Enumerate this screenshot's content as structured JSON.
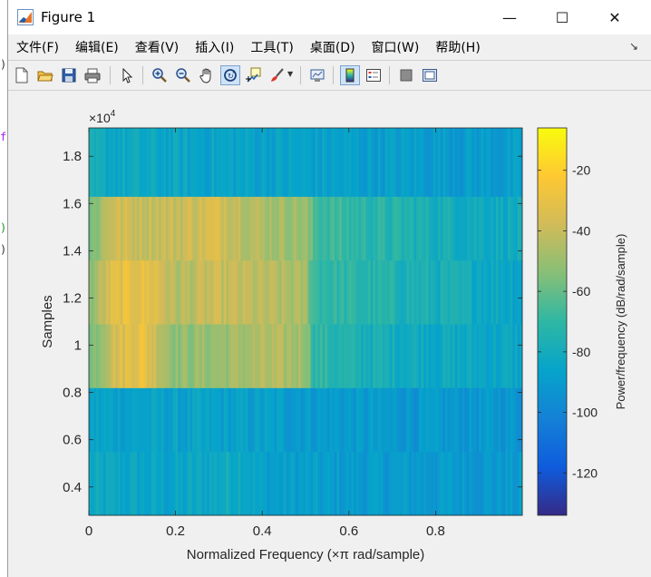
{
  "window": {
    "title": "Figure 1",
    "minimize_glyph": "—",
    "maximize_glyph": "☐",
    "close_glyph": "✕"
  },
  "menu": {
    "items": [
      "文件(F)",
      "编辑(E)",
      "查看(V)",
      "插入(I)",
      "工具(T)",
      "桌面(D)",
      "窗口(W)",
      "帮助(H)"
    ],
    "overflow_glyph": "↘"
  },
  "toolbar": {
    "icons": [
      "new-figure-icon",
      "open-file-icon",
      "save-icon",
      "print-icon",
      "edit-pointer-icon",
      "zoom-in-icon",
      "zoom-out-icon",
      "pan-hand-icon",
      "rotate-3d-icon",
      "data-cursor-icon",
      "brush-icon",
      "link-plot-icon",
      "insert-colorbar-icon",
      "insert-legend-icon",
      "hide-plot-tools-icon",
      "show-plot-tools-icon"
    ]
  },
  "background_code_glyphs": [
    ")",
    "f",
    ")",
    ")"
  ],
  "colors": {
    "parula": [
      "#352a87",
      "#0f5cdd",
      "#1481d6",
      "#06a4ca",
      "#2eb7a4",
      "#87bf77",
      "#d1bb59",
      "#fec832",
      "#f9fb0e"
    ],
    "axes_text": "#262626"
  },
  "chart_data": {
    "type": "heatmap",
    "title": "",
    "xlabel": "Normalized Frequency  (×π rad/sample)",
    "ylabel": "Samples",
    "y_exponent_label": "×10",
    "y_exponent_power": "4",
    "xlim": [
      0,
      1
    ],
    "ylim": [
      2800,
      19200
    ],
    "x_ticks": [
      0,
      0.2,
      0.4,
      0.6,
      0.8
    ],
    "x_tick_labels": [
      "0",
      "0.2",
      "0.4",
      "0.6",
      "0.8"
    ],
    "y_ticks": [
      4000,
      6000,
      8000,
      10000,
      12000,
      14000,
      16000,
      18000
    ],
    "y_tick_labels": [
      "0.4",
      "0.6",
      "0.8",
      "1",
      "1.2",
      "1.4",
      "1.6",
      "1.8"
    ],
    "colorbar": {
      "label": "Power/frequency (dB/rad/sample)",
      "clim": [
        -134,
        -6
      ],
      "ticks": [
        -20,
        -40,
        -60,
        -80,
        -100,
        -120
      ],
      "tick_labels": [
        "-20",
        "-40",
        "-60",
        "-80",
        "-100",
        "-120"
      ]
    },
    "time_bands": [
      {
        "y_range": [
          2800,
          5500
        ],
        "profile": [
          [
            0,
            -84
          ],
          [
            0.2,
            -86
          ],
          [
            0.35,
            -80
          ],
          [
            0.4,
            -88
          ],
          [
            0.6,
            -90
          ],
          [
            0.8,
            -90
          ],
          [
            1,
            -91
          ]
        ]
      },
      {
        "y_range": [
          5500,
          8200
        ],
        "profile": [
          [
            0,
            -86
          ],
          [
            0.2,
            -87
          ],
          [
            0.4,
            -88
          ],
          [
            0.6,
            -90
          ],
          [
            0.8,
            -92
          ],
          [
            1,
            -92
          ]
        ]
      },
      {
        "y_range": [
          8200,
          10900
        ],
        "profile": [
          [
            0,
            -60
          ],
          [
            0.05,
            -38
          ],
          [
            0.12,
            -28
          ],
          [
            0.2,
            -52
          ],
          [
            0.3,
            -50
          ],
          [
            0.4,
            -46
          ],
          [
            0.5,
            -48
          ],
          [
            0.52,
            -70
          ],
          [
            0.6,
            -76
          ],
          [
            0.8,
            -82
          ],
          [
            1,
            -85
          ]
        ]
      },
      {
        "y_range": [
          10900,
          13600
        ],
        "profile": [
          [
            0,
            -55
          ],
          [
            0.05,
            -35
          ],
          [
            0.1,
            -30
          ],
          [
            0.15,
            -32
          ],
          [
            0.2,
            -45
          ],
          [
            0.3,
            -40
          ],
          [
            0.4,
            -44
          ],
          [
            0.5,
            -48
          ],
          [
            0.52,
            -68
          ],
          [
            0.6,
            -72
          ],
          [
            0.8,
            -78
          ],
          [
            1,
            -84
          ]
        ]
      },
      {
        "y_range": [
          13600,
          16300
        ],
        "profile": [
          [
            0,
            -60
          ],
          [
            0.05,
            -38
          ],
          [
            0.2,
            -40
          ],
          [
            0.3,
            -35
          ],
          [
            0.4,
            -46
          ],
          [
            0.5,
            -50
          ],
          [
            0.52,
            -65
          ],
          [
            0.6,
            -70
          ],
          [
            0.8,
            -78
          ],
          [
            1,
            -82
          ]
        ]
      },
      {
        "y_range": [
          16300,
          19200
        ],
        "profile": [
          [
            0,
            -82
          ],
          [
            0.2,
            -85
          ],
          [
            0.4,
            -86
          ],
          [
            0.6,
            -88
          ],
          [
            0.8,
            -89
          ],
          [
            1,
            -90
          ]
        ]
      }
    ]
  }
}
